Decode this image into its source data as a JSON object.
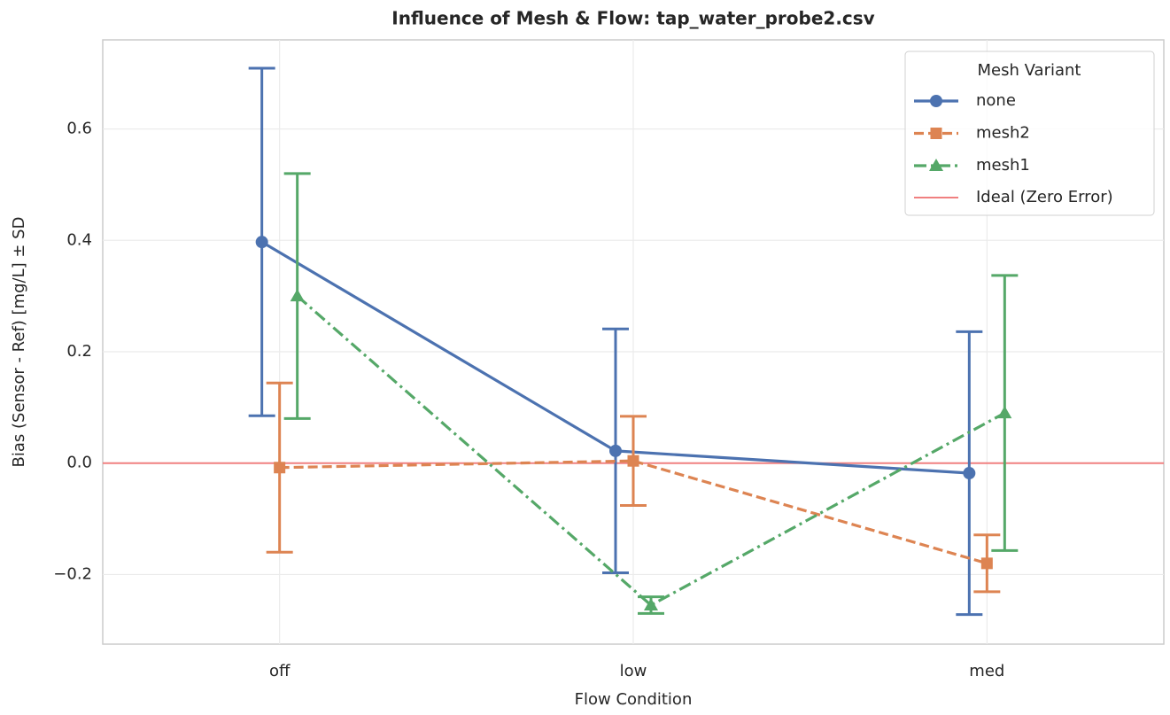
{
  "chart_data": {
    "type": "line",
    "title": "Influence of Mesh & Flow: tap_water_probe2.csv",
    "xlabel": "Flow Condition",
    "ylabel": "Bias (Sensor - Ref) [mg/L] ± SD",
    "categories": [
      "off",
      "low",
      "med"
    ],
    "ylim": [
      -0.325,
      0.76
    ],
    "yticks": [
      {
        "value": -0.2,
        "label": "−0.2"
      },
      {
        "value": 0,
        "label": "0.0"
      },
      0.2,
      0.4,
      0.6
    ],
    "grid": true,
    "legend_title": "Mesh Variant",
    "legend_position": "upper right",
    "series": [
      {
        "name": "none",
        "color": "#4c72b0",
        "linestyle": "solid",
        "marker": "circle",
        "values": [
          0.397,
          0.022,
          -0.018
        ],
        "errors": [
          0.312,
          0.219,
          0.254
        ]
      },
      {
        "name": "mesh2",
        "color": "#dd8452",
        "linestyle": "dashed",
        "marker": "square",
        "values": [
          -0.008,
          0.004,
          -0.18
        ],
        "errors": [
          0.152,
          0.08,
          0.051
        ]
      },
      {
        "name": "mesh1",
        "color": "#55a868",
        "linestyle": "dashdot",
        "marker": "triangle",
        "values": [
          0.3,
          -0.255,
          0.09
        ],
        "errors": [
          0.22,
          0.015,
          0.247
        ]
      }
    ],
    "reference_line": {
      "value": 0,
      "label": "Ideal (Zero Error)",
      "color": "#f08080"
    }
  }
}
